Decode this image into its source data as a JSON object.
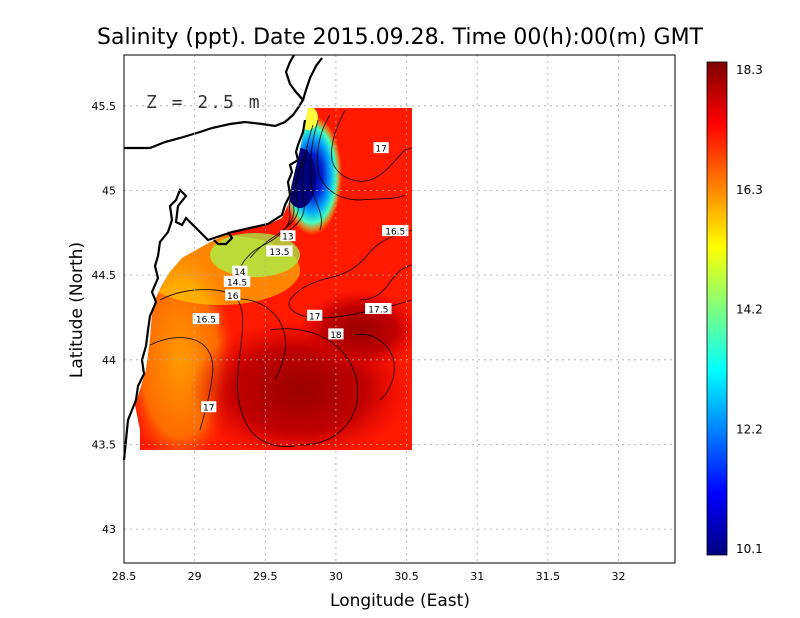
{
  "title": "Salinity (ppt). Date 2015.09.28. Time 00(h):00(m) GMT",
  "depth_label": "Z = 2.5 m",
  "chart_data": {
    "type": "heatmap",
    "variable": "Salinity (ppt)",
    "xlabel": "Longitude (East)",
    "ylabel": "Latitude (North)",
    "xlim": [
      28.5,
      32.4
    ],
    "ylim": [
      42.8,
      45.8
    ],
    "x_ticks": [
      "28.5",
      "29",
      "29.5",
      "30",
      "30.5",
      "31",
      "31.5",
      "32"
    ],
    "y_ticks": [
      "43",
      "43.5",
      "44",
      "44.5",
      "45",
      "45.5"
    ],
    "grid": true,
    "colorbar": {
      "range": [
        10.1,
        18.3
      ],
      "tick_labels": [
        "18.3",
        "16.3",
        "14.2",
        "12.2",
        "10.1"
      ],
      "colors": [
        "#00007f",
        "#0000ff",
        "#007fff",
        "#00ffff",
        "#7fff7f",
        "#ffff00",
        "#ff7f00",
        "#ff0000",
        "#7f0000"
      ]
    },
    "contour_labels": [
      {
        "text": "17",
        "lon": 30.32,
        "lat": 45.25
      },
      {
        "text": "16.5",
        "lon": 30.42,
        "lat": 44.76
      },
      {
        "text": "13",
        "lon": 29.66,
        "lat": 44.73
      },
      {
        "text": "13.5",
        "lon": 29.6,
        "lat": 44.64
      },
      {
        "text": "14",
        "lon": 29.32,
        "lat": 44.52
      },
      {
        "text": "14.5",
        "lon": 29.3,
        "lat": 44.46
      },
      {
        "text": "16",
        "lon": 29.27,
        "lat": 44.38
      },
      {
        "text": "17.5",
        "lon": 30.3,
        "lat": 44.3
      },
      {
        "text": "17",
        "lon": 29.85,
        "lat": 44.26
      },
      {
        "text": "16.5",
        "lon": 29.08,
        "lat": 44.24
      },
      {
        "text": "18",
        "lon": 30.0,
        "lat": 44.15
      },
      {
        "text": "17",
        "lon": 29.1,
        "lat": 43.72
      }
    ]
  }
}
